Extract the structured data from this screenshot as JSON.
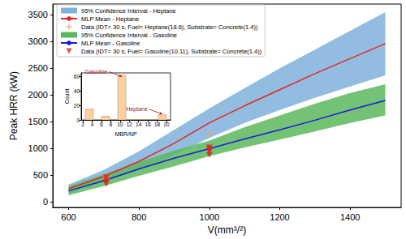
{
  "chart_data": [
    {
      "type": "line",
      "x_label": "V(mm³/²)",
      "y_label": "Peak HRR (kW)",
      "xlim": [
        555,
        1545
      ],
      "ylim": [
        -100,
        3700
      ],
      "xticks": [
        600,
        800,
        1000,
        1200,
        1400
      ],
      "yticks": [
        0,
        500,
        1000,
        1500,
        2000,
        2500,
        3000,
        3500
      ],
      "grid": false,
      "legend": "upper left",
      "x": [
        600,
        700,
        800,
        900,
        1000,
        1100,
        1200,
        1300,
        1400,
        1500
      ],
      "series": [
        {
          "type": "band",
          "name": "95% Confidence Interval - Heptane",
          "color": "#7fb1dc",
          "lower": [
            170,
            370,
            600,
            880,
            1200,
            1480,
            1720,
            1950,
            2160,
            2370
          ],
          "upper": [
            330,
            600,
            950,
            1350,
            1750,
            2130,
            2500,
            2850,
            3200,
            3550
          ]
        },
        {
          "type": "line",
          "name": "MLP Mean - Heptane",
          "color": "#e6261f",
          "values": [
            250,
            480,
            760,
            1100,
            1480,
            1800,
            2100,
            2400,
            2680,
            2960
          ]
        },
        {
          "type": "scatter",
          "name": "Data (IDT= 30 s, Fuel= Heptane(18.6), Substrate= Concrete(1.4))",
          "color": "#f4a15d",
          "marker": "plus",
          "x": [
            707,
            707,
            1000
          ],
          "values": [
            480,
            440,
            1280
          ]
        },
        {
          "type": "band",
          "name": "95% Confidence Interval - Gasoline",
          "color": "#5cb85c",
          "lower": [
            130,
            300,
            490,
            670,
            860,
            1020,
            1170,
            1320,
            1480,
            1620
          ],
          "upper": [
            300,
            520,
            750,
            960,
            1150,
            1400,
            1620,
            1840,
            2040,
            2200
          ]
        },
        {
          "type": "line",
          "name": "MLP Mean - Gasoline",
          "color": "#1a1adf",
          "values": [
            210,
            400,
            620,
            820,
            1000,
            1180,
            1350,
            1530,
            1720,
            1900
          ]
        },
        {
          "type": "scatter",
          "name": "Data (IDT= 30 s, Fuel= Gasoline(10.11), Substrate= Concrete(1.4))",
          "color": "#d9261c",
          "marker": "triangle_down",
          "x": [
            707,
            707,
            707,
            707,
            1000,
            1000,
            1000,
            1000
          ],
          "values": [
            470,
            420,
            380,
            340,
            1020,
            990,
            950,
            880
          ]
        }
      ]
    },
    {
      "type": "histogram",
      "x_label": "MBR/NP",
      "y_label": "Count",
      "xlim": [
        1.625,
        20.875
      ],
      "ylim": [
        0,
        65.1
      ],
      "xticks": [
        2,
        4,
        6,
        8,
        10,
        12,
        14,
        16,
        18,
        20
      ],
      "yticks": [
        0,
        20,
        40,
        60
      ],
      "color": "#fdd0a2",
      "bins": [
        2.5,
        4.25,
        6.0,
        7.75,
        9.5,
        11.25,
        13.0,
        14.75,
        16.5,
        18.25,
        20.0
      ],
      "counts": [
        15,
        0,
        5,
        0,
        62,
        0,
        0,
        0,
        0,
        7
      ],
      "annotations": [
        {
          "text": "Gasoline",
          "x": 10.4,
          "y": 60
        },
        {
          "text": "Heptane",
          "x": 19.1,
          "y": 8
        }
      ]
    }
  ]
}
